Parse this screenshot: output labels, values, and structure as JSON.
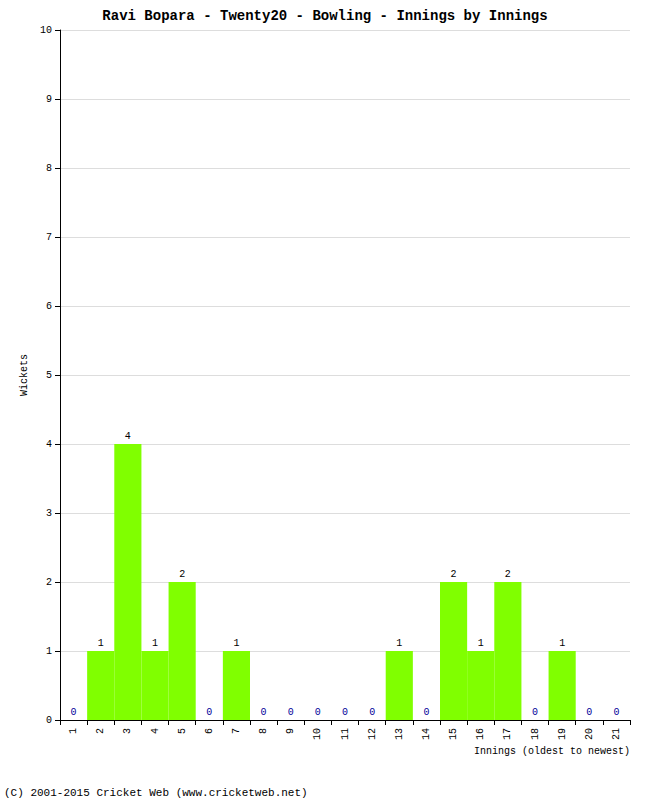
{
  "chart_data": {
    "type": "bar",
    "title": "Ravi Bopara - Twenty20 - Bowling - Innings by Innings",
    "x_label": "Innings (oldest to newest)",
    "y_label": "Wickets",
    "categories": [
      "1",
      "2",
      "3",
      "4",
      "5",
      "6",
      "7",
      "8",
      "9",
      "10",
      "11",
      "12",
      "13",
      "14",
      "15",
      "16",
      "17",
      "18",
      "19",
      "20",
      "21"
    ],
    "values": [
      0,
      1,
      4,
      1,
      2,
      0,
      1,
      0,
      0,
      0,
      0,
      0,
      1,
      0,
      2,
      1,
      2,
      0,
      1,
      0,
      0
    ],
    "color": "#80ff00",
    "ylim": [
      0,
      10
    ],
    "yticks": [
      0,
      1,
      2,
      3,
      4,
      5,
      6,
      7,
      8,
      9,
      10
    ],
    "grid": true,
    "data_labels": true,
    "annotations": [
      "(C) 2001-2015 Cricket Web (www.cricketweb.net)"
    ]
  }
}
